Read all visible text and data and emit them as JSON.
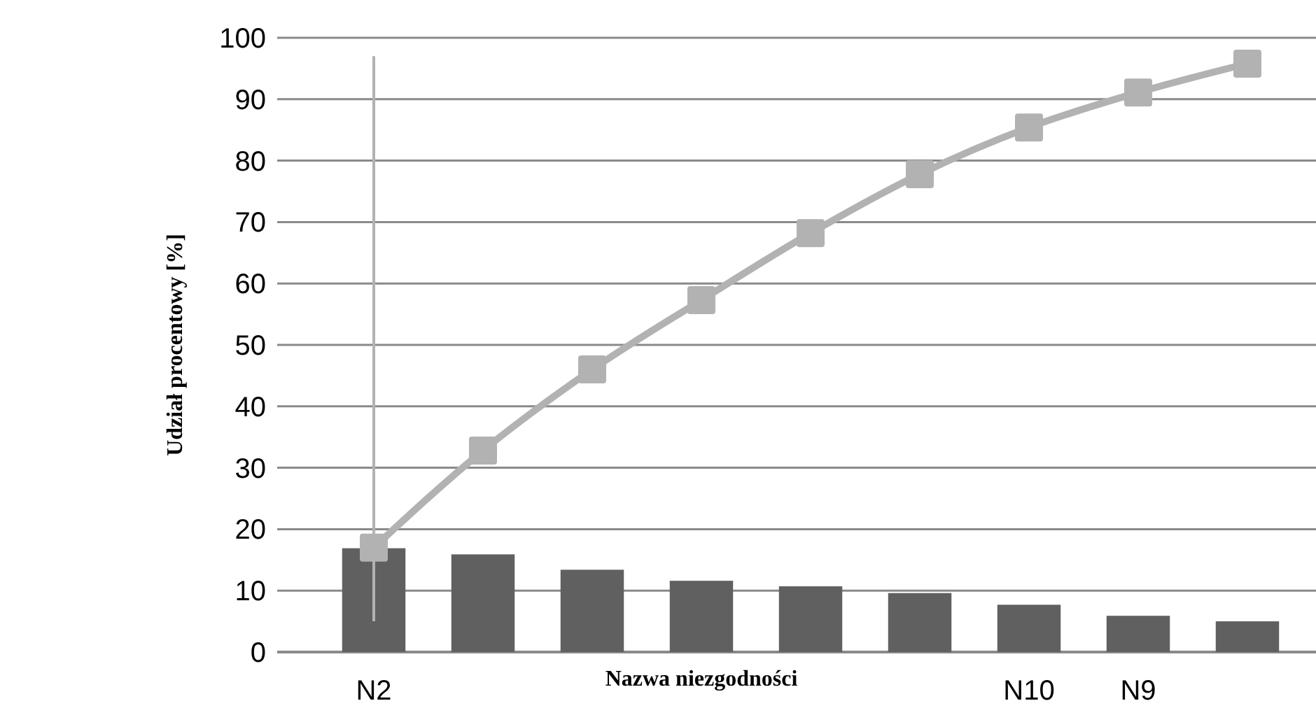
{
  "chart_data": {
    "type": "bar",
    "xlabel": "Nazwa niezgodności",
    "ylabel": "Udział  procentowy [%]",
    "categories": [
      "N2",
      null,
      null,
      null,
      null,
      null,
      "N10",
      "N9",
      null
    ],
    "series": [
      {
        "color": "#606060",
        "values": [
          16.9,
          15.9,
          13.4,
          11.6,
          10.7,
          9.6,
          7.7,
          5.9,
          5.0
        ]
      },
      {
        "type": "line",
        "color": "#b2b2b2",
        "marker": "square",
        "values": [
          17,
          32.8,
          46,
          57.3,
          68.2,
          77.8,
          85.4,
          91.1,
          95.8
        ],
        "errors": [
          [
            5,
            97
          ],
          null,
          null,
          null,
          null,
          null,
          null,
          null,
          null
        ]
      }
    ],
    "ylim": [
      0,
      100
    ],
    "yticks": [
      0,
      10,
      20,
      30,
      40,
      50,
      60,
      70,
      80,
      90,
      100
    ],
    "grid": "y"
  }
}
